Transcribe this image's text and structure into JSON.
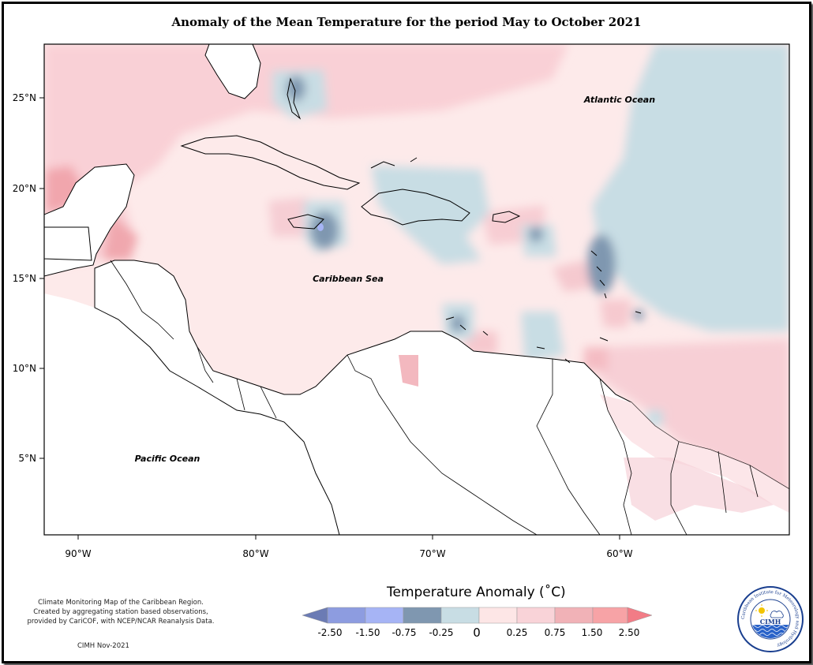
{
  "title": "Anomaly of the Mean Temperature for the period May to October 2021",
  "map": {
    "lon_labels": [
      "90°W",
      "80°W",
      "70°W",
      "60°W"
    ],
    "lat_labels": [
      "25°N",
      "20°N",
      "15°N",
      "10°N",
      "5°N"
    ],
    "labels": {
      "atlantic": "Atlantic Ocean",
      "caribbean": "Caribbean Sea",
      "pacific": "Pacific Ocean"
    }
  },
  "legend": {
    "title": "Temperature Anomaly (˚C)",
    "ticks": [
      "-2.50",
      "-1.50",
      "-0.75",
      "-0.25",
      "0",
      "0.25",
      "0.75",
      "1.50",
      "2.50"
    ],
    "colors": [
      "#6b7bb4",
      "#8d9ce0",
      "#a6b4f5",
      "#7f97b0",
      "#c8dde4",
      "#fde6e6",
      "#f9d3d8",
      "#f1b2b7",
      "#f7a3a6",
      "#f27c86"
    ]
  },
  "footer": {
    "note_line1": "Climate Monitoring Map of the Caribbean Region.",
    "note_line2": "Created by aggregating station based observations,",
    "note_line3": "provided by CariCOF, with NCEP/NCAR Reanalysis Data.",
    "credit": "CIMH Nov-2021"
  },
  "logo": {
    "text": "CIMH",
    "ring_text": "Caribbean Institute for Meteorology and Hydrology"
  }
}
